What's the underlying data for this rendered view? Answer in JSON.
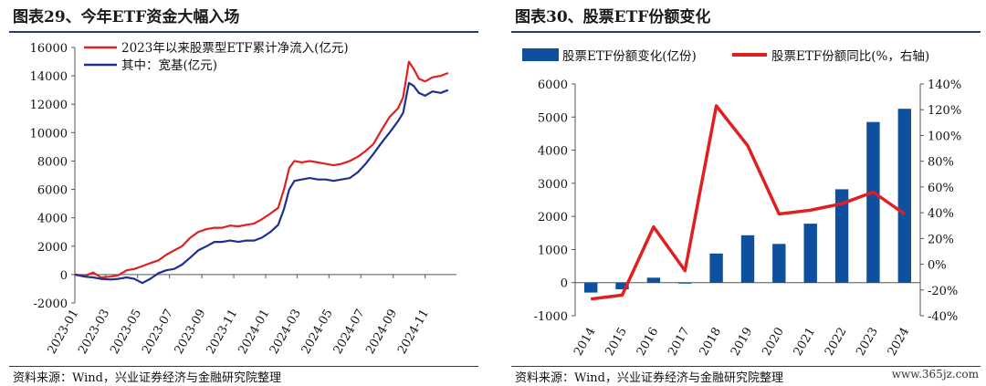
{
  "left": {
    "title": "图表29、今年ETF资金大幅入场",
    "source": "资料来源：Wind，兴业证券经济与金融研究院整理"
  },
  "right": {
    "title": "图表30、股票ETF份额变化",
    "source": "资料来源：Wind，兴业证券经济与金融研究院整理",
    "watermark": "www.365jz.com"
  },
  "colors": {
    "red": "#e02020",
    "navy": "#1f2f8f",
    "blue": "#0e4f9e",
    "rule": "#1f3d7a"
  },
  "chart_data": [
    {
      "type": "line",
      "ylim": [
        -2000,
        16000
      ],
      "y_ticks": [
        "-2000",
        "0",
        "2000",
        "4000",
        "6000",
        "8000",
        "10000",
        "12000",
        "14000",
        "16000"
      ],
      "x_ticks": [
        "2023-01",
        "2023-03",
        "2023-05",
        "2023-07",
        "2023-09",
        "2023-11",
        "2024-01",
        "2024-03",
        "2024-05",
        "2024-07",
        "2024-09",
        "2024-11"
      ],
      "legend_position": "top-left",
      "series": [
        {
          "name": "2023年以来股票型ETF累计净流入(亿元)",
          "color": "#e02020",
          "points": [
            [
              "2023-01-01",
              0
            ],
            [
              "2023-01-20",
              -100
            ],
            [
              "2023-02-05",
              150
            ],
            [
              "2023-02-20",
              -200
            ],
            [
              "2023-03-10",
              -150
            ],
            [
              "2023-03-25",
              -50
            ],
            [
              "2023-04-10",
              300
            ],
            [
              "2023-04-25",
              400
            ],
            [
              "2023-05-10",
              600
            ],
            [
              "2023-05-25",
              800
            ],
            [
              "2023-06-10",
              1000
            ],
            [
              "2023-06-25",
              1400
            ],
            [
              "2023-07-10",
              1700
            ],
            [
              "2023-07-25",
              2000
            ],
            [
              "2023-08-10",
              2600
            ],
            [
              "2023-08-25",
              3000
            ],
            [
              "2023-09-10",
              3200
            ],
            [
              "2023-09-25",
              3300
            ],
            [
              "2023-10-10",
              3300
            ],
            [
              "2023-10-25",
              3450
            ],
            [
              "2023-11-10",
              3400
            ],
            [
              "2023-11-25",
              3500
            ],
            [
              "2023-12-10",
              3600
            ],
            [
              "2023-12-25",
              3900
            ],
            [
              "2024-01-10",
              4300
            ],
            [
              "2024-01-25",
              4700
            ],
            [
              "2024-02-05",
              6000
            ],
            [
              "2024-02-15",
              7500
            ],
            [
              "2024-02-25",
              8000
            ],
            [
              "2024-03-10",
              7900
            ],
            [
              "2024-03-25",
              8000
            ],
            [
              "2024-04-10",
              7900
            ],
            [
              "2024-04-25",
              7800
            ],
            [
              "2024-05-10",
              7700
            ],
            [
              "2024-05-25",
              7800
            ],
            [
              "2024-06-10",
              8000
            ],
            [
              "2024-06-25",
              8300
            ],
            [
              "2024-07-10",
              8700
            ],
            [
              "2024-07-25",
              9200
            ],
            [
              "2024-08-10",
              10200
            ],
            [
              "2024-08-25",
              11100
            ],
            [
              "2024-09-10",
              11700
            ],
            [
              "2024-09-20",
              12500
            ],
            [
              "2024-10-01",
              15000
            ],
            [
              "2024-10-10",
              14500
            ],
            [
              "2024-10-20",
              13800
            ],
            [
              "2024-11-01",
              13600
            ],
            [
              "2024-11-15",
              13900
            ],
            [
              "2024-12-01",
              14000
            ],
            [
              "2024-12-15",
              14200
            ]
          ]
        },
        {
          "name": "其中：宽基(亿元)",
          "color": "#1f2f8f",
          "points": [
            [
              "2023-01-01",
              0
            ],
            [
              "2023-01-20",
              -150
            ],
            [
              "2023-02-05",
              -200
            ],
            [
              "2023-02-20",
              -300
            ],
            [
              "2023-03-10",
              -350
            ],
            [
              "2023-03-25",
              -300
            ],
            [
              "2023-04-10",
              -200
            ],
            [
              "2023-04-25",
              -300
            ],
            [
              "2023-05-10",
              -600
            ],
            [
              "2023-05-25",
              -300
            ],
            [
              "2023-06-10",
              100
            ],
            [
              "2023-06-25",
              300
            ],
            [
              "2023-07-10",
              400
            ],
            [
              "2023-07-25",
              700
            ],
            [
              "2023-08-10",
              1200
            ],
            [
              "2023-08-25",
              1700
            ],
            [
              "2023-09-10",
              2000
            ],
            [
              "2023-09-25",
              2300
            ],
            [
              "2023-10-10",
              2300
            ],
            [
              "2023-10-25",
              2400
            ],
            [
              "2023-11-10",
              2300
            ],
            [
              "2023-11-25",
              2400
            ],
            [
              "2023-12-10",
              2400
            ],
            [
              "2023-12-25",
              2600
            ],
            [
              "2024-01-10",
              3000
            ],
            [
              "2024-01-25",
              3500
            ],
            [
              "2024-02-05",
              4600
            ],
            [
              "2024-02-15",
              6000
            ],
            [
              "2024-02-25",
              6600
            ],
            [
              "2024-03-10",
              6700
            ],
            [
              "2024-03-25",
              6800
            ],
            [
              "2024-04-10",
              6700
            ],
            [
              "2024-04-25",
              6700
            ],
            [
              "2024-05-10",
              6600
            ],
            [
              "2024-05-25",
              6700
            ],
            [
              "2024-06-10",
              6800
            ],
            [
              "2024-06-25",
              7200
            ],
            [
              "2024-07-10",
              7800
            ],
            [
              "2024-07-25",
              8500
            ],
            [
              "2024-08-10",
              9300
            ],
            [
              "2024-08-25",
              10000
            ],
            [
              "2024-09-10",
              10800
            ],
            [
              "2024-09-20",
              11400
            ],
            [
              "2024-10-01",
              13500
            ],
            [
              "2024-10-10",
              13300
            ],
            [
              "2024-10-20",
              12800
            ],
            [
              "2024-11-01",
              12600
            ],
            [
              "2024-11-15",
              12900
            ],
            [
              "2024-12-01",
              12800
            ],
            [
              "2024-12-15",
              13000
            ]
          ]
        }
      ]
    },
    {
      "type": "bar",
      "categories": [
        "2014",
        "2015",
        "2016",
        "2017",
        "2018",
        "2019",
        "2020",
        "2021",
        "2022",
        "2023",
        "2024"
      ],
      "legend_position": "top",
      "y_left_ticks": [
        "-1000",
        "0",
        "1000",
        "2000",
        "3000",
        "4000",
        "5000",
        "6000"
      ],
      "y_right_ticks": [
        "-40%",
        "-20%",
        "0%",
        "20%",
        "40%",
        "60%",
        "80%",
        "100%",
        "120%",
        "140%"
      ],
      "ylim_left": [
        -1000,
        6000
      ],
      "ylim_right": [
        -40,
        140
      ],
      "series": [
        {
          "name": "股票ETF份额变化(亿份)",
          "type": "bar",
          "color": "#0e4f9e",
          "values": [
            -300,
            -200,
            150,
            -30,
            880,
            1430,
            1170,
            1780,
            2820,
            4850,
            5250
          ]
        },
        {
          "name": "股票ETF份额同比(%，右轴)",
          "type": "line",
          "axis": "right",
          "color": "#e02020",
          "values": [
            -27,
            -24,
            29,
            -5,
            123,
            92,
            39,
            42,
            47,
            56,
            39
          ]
        }
      ]
    }
  ]
}
